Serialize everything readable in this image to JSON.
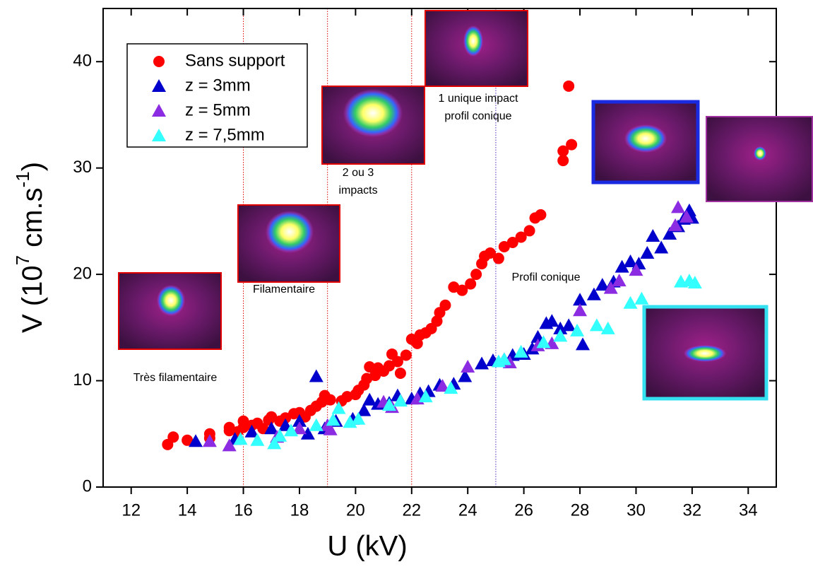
{
  "chart_data": {
    "type": "scatter",
    "xlabel": "U (kV)",
    "ylabel_parts": [
      "V  (10",
      "7",
      " cm.s",
      "-1",
      ")"
    ],
    "xlim": [
      11,
      35
    ],
    "ylim": [
      0,
      45
    ],
    "xticks": [
      12,
      14,
      16,
      18,
      20,
      22,
      24,
      26,
      28,
      30,
      32,
      34
    ],
    "yticks": [
      0,
      10,
      20,
      30,
      40
    ],
    "vlines": [
      {
        "x": 16,
        "color": "#e00000"
      },
      {
        "x": 19,
        "color": "#e00000"
      },
      {
        "x": 22,
        "color": "#e00000"
      },
      {
        "x": 25,
        "color": "#5a2ac8"
      }
    ],
    "annotations": [
      {
        "lines": [
          "Très filamentaire"
        ],
        "color": "#ff0000"
      },
      {
        "lines": [
          "Filamentaire"
        ],
        "color": "#ff0000"
      },
      {
        "lines": [
          "2 ou 3",
          "impacts"
        ],
        "color": "#ff0000"
      },
      {
        "lines": [
          "1 unique impact",
          "profil conique"
        ],
        "color": "#ff0000"
      },
      {
        "lines": [
          "Profil conique"
        ],
        "color": "#000080"
      }
    ],
    "series": [
      {
        "name": "Sans support",
        "color": "#ff0000",
        "marker": "circle",
        "x": [
          13.3,
          13.5,
          14,
          14.8,
          14.8,
          15.5,
          15.5,
          15.8,
          16,
          16,
          16.3,
          16.5,
          16.7,
          16.9,
          17,
          17.3,
          17.5,
          17.8,
          18,
          18.2,
          18.4,
          18.6,
          18.8,
          18.9,
          19.1,
          19.5,
          19.7,
          20,
          20.1,
          20.3,
          20.4,
          20.5,
          20.7,
          20.8,
          21,
          21.2,
          21.3,
          21.5,
          21.6,
          21.8,
          22,
          22.2,
          22.3,
          22.5,
          22.7,
          22.9,
          23,
          23.2,
          23.5,
          23.8,
          24.1,
          24.3,
          24.5,
          24.6,
          24.8,
          25.1,
          25.3,
          25.6,
          25.9,
          26.2,
          26.4,
          26.6,
          27.4,
          27.4,
          27.7,
          27.6
        ],
        "values": [
          4.0,
          4.7,
          4.4,
          5.0,
          4.6,
          5.3,
          5.6,
          5.2,
          5.6,
          6.2,
          5.8,
          6.0,
          5.5,
          6.3,
          6.6,
          6.2,
          6.5,
          6.9,
          7.0,
          6.6,
          7.2,
          7.6,
          8.0,
          8.6,
          8.2,
          8.1,
          8.5,
          8.7,
          9.1,
          9.6,
          10.2,
          11.3,
          10.5,
          11.2,
          10.9,
          11.4,
          12.5,
          11.8,
          10.7,
          12.4,
          13.9,
          13.5,
          14.3,
          14.5,
          14.9,
          15.6,
          16.4,
          17.1,
          18.8,
          18.5,
          19.1,
          20.0,
          21.0,
          21.7,
          22.0,
          21.5,
          22.6,
          23.0,
          23.5,
          24.1,
          25.3,
          25.6,
          31.6,
          30.7,
          32.2,
          37.7
        ]
      },
      {
        "name": "z = 3mm",
        "color": "#0000cc",
        "marker": "triangle",
        "x": [
          14.3,
          15.7,
          16.3,
          17,
          17.5,
          18,
          18.3,
          18.6,
          18.9,
          19.3,
          19.9,
          20.3,
          20.5,
          20.8,
          21.2,
          21.5,
          22,
          22.3,
          22.6,
          23,
          23.5,
          23.9,
          24.5,
          24.9,
          25.3,
          25.6,
          26,
          26.3,
          26.5,
          26.8,
          27,
          27.3,
          27.6,
          28,
          28.1,
          28.5,
          28.8,
          29.2,
          29.5,
          29.8,
          30.1,
          30.4,
          30.6,
          30.9,
          31.2,
          31.5,
          31.7,
          31.9,
          32.0
        ],
        "values": [
          4.3,
          4.5,
          5.2,
          5.5,
          5.8,
          6.2,
          5.0,
          10.4,
          5.5,
          6.2,
          6.4,
          7.2,
          8.2,
          7.8,
          7.9,
          8.6,
          8.3,
          8.8,
          9.0,
          9.6,
          9.7,
          10.4,
          11.6,
          11.9,
          12.0,
          12.4,
          12.5,
          13.0,
          14.1,
          15.4,
          15.6,
          14.9,
          15.2,
          17.6,
          13.4,
          18.1,
          19.0,
          19.3,
          20.7,
          21.2,
          21.0,
          22.0,
          23.6,
          22.5,
          23.8,
          24.5,
          25.2,
          26.0,
          25.3
        ]
      },
      {
        "name": "z = 5mm",
        "color": "#8b2be2",
        "marker": "triangle",
        "x": [
          14.8,
          15.5,
          17.2,
          18,
          19.0,
          19.1,
          21,
          21.3,
          22.2,
          23.1,
          24,
          25.5,
          26.5,
          27,
          28,
          29.1,
          29.4,
          30.0,
          31.5,
          31.4,
          31.8
        ],
        "values": [
          4.3,
          3.9,
          4.7,
          5.5,
          5.8,
          5.4,
          8.0,
          7.5,
          8.3,
          9.5,
          11.3,
          11.7,
          13.3,
          13.5,
          16.6,
          18.7,
          19.4,
          20.4,
          26.3,
          24.6,
          25.4
        ]
      },
      {
        "name": "z =  7,5mm",
        "color": "#33ffff",
        "marker": "triangle",
        "x": [
          15.9,
          16.5,
          17.1,
          17.3,
          17.7,
          18.6,
          19.2,
          19.4,
          19.8,
          20.1,
          21.2,
          21.6,
          22.5,
          23.4,
          25.1,
          25.3,
          25.9,
          26.7,
          27.3,
          27.9,
          28.6,
          29.0,
          29.8,
          30.2,
          31.6,
          31.9,
          32.1
        ],
        "values": [
          4.5,
          4.4,
          4.1,
          4.8,
          5.3,
          5.8,
          6.3,
          7.4,
          6.1,
          6.4,
          7.7,
          8.1,
          8.5,
          9.3,
          11.8,
          12.0,
          12.7,
          13.6,
          14.2,
          14.7,
          15.2,
          14.9,
          17.3,
          17.7,
          19.3,
          19.4,
          19.2
        ]
      }
    ]
  }
}
